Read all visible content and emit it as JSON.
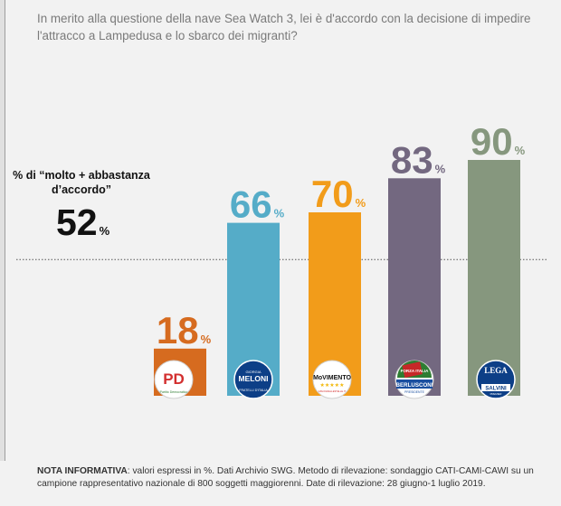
{
  "question": "In merito alla questione della nave Sea Watch 3, lei è d'accordo con la decisione di impedire l'attracco a Lampedusa e lo sbarco dei migranti?",
  "overall": {
    "label": "% di “molto + abbastanza d’accordo”",
    "value": "52",
    "unit": "%"
  },
  "logos": {
    "pd": {
      "big": "PD",
      "small": "Partito Democratico"
    },
    "fdi": {
      "top": "GIORGIA",
      "name": "MELONI",
      "bottom": "FRATELLI D'ITALIA"
    },
    "m5s": {
      "name": "MoVIMENTO",
      "stars": "★★★★★",
      "url": "ILBLOGDELLESTELLE.IT"
    },
    "fi": {
      "top": "FORZA ITALIA",
      "name": "BERLUSCONI",
      "bottom": "PRESIDENTE"
    },
    "lega": {
      "name": "LEGA",
      "leader": "SALVINI",
      "bottom": "PREMIER"
    }
  },
  "note": {
    "title": "NOTA INFORMATIVA",
    "text": ": valori espressi in %. Dati Archivio SWG. Metodo di rilevazione: sondaggio CATI-CAMI-CAWI su un campione rappresentativo nazionale di 800 soggetti maggiorenni. Date di rilevazione: 28 giugno-1 luglio 2019."
  },
  "chart_data": {
    "type": "bar",
    "categories": [
      "PD",
      "Fratelli d'Italia",
      "Movimento 5 Stelle",
      "Forza Italia",
      "Lega"
    ],
    "values": [
      18,
      66,
      70,
      83,
      90
    ],
    "value_suffix": "%",
    "reference_line": {
      "value": 52,
      "style": "dotted"
    },
    "colors": [
      "#d66b1f",
      "#55acc8",
      "#f29c1a",
      "#736880",
      "#86977e"
    ],
    "ylim": [
      0,
      100
    ]
  }
}
